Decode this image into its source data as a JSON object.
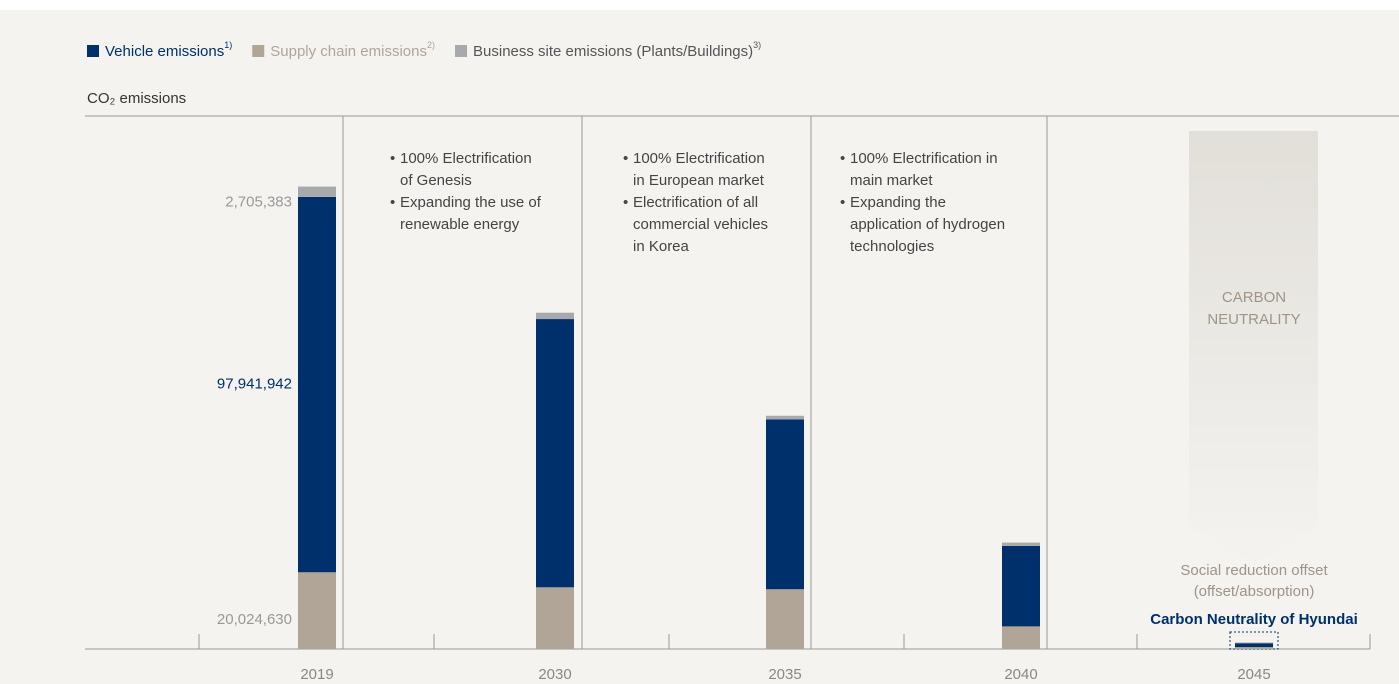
{
  "chart_data": {
    "type": "stacked_bar",
    "ylabel": "CO₂ emissions",
    "categories": [
      "2019",
      "2030",
      "2035",
      "2040",
      "2045"
    ],
    "series": [
      {
        "name": "Supply chain emissions",
        "footnote": "2)",
        "color": "#b0a597",
        "values": [
          20024630,
          16100000,
          15600000,
          5900000,
          500000
        ],
        "value_labels": [
          "20,024,630",
          null,
          null,
          null,
          null
        ]
      },
      {
        "name": "Vehicle emissions",
        "footnote": "1)",
        "color": "#00306b",
        "values": [
          97941942,
          70000000,
          44300000,
          21000000,
          1000000
        ],
        "value_labels": [
          "97,941,942",
          null,
          null,
          null,
          null
        ]
      },
      {
        "name": "Business site emissions (Plants/Buildings)",
        "footnote": "3)",
        "color": "#a8a9ad",
        "values": [
          2705383,
          1660000,
          960000,
          870000,
          200000
        ],
        "value_labels": [
          "2,705,383",
          null,
          null,
          null,
          null
        ]
      }
    ],
    "legend_order": [
      1,
      0,
      2
    ],
    "ylim": [
      0,
      125000000
    ],
    "notes": [
      [
        [
          "100% Electrification",
          "of Genesis"
        ],
        [
          "Expanding the use of",
          "renewable energy"
        ]
      ],
      [
        [
          "100% Electrification",
          "in European market"
        ],
        [
          "Electrification of all",
          "commercial vehicles",
          "in Korea"
        ]
      ],
      [
        [
          "100% Electrification in",
          "main market"
        ],
        [
          "Expanding the",
          "application of hydrogen",
          "technologies"
        ]
      ]
    ],
    "arrow_label": [
      "CARBON",
      "NEUTRALITY"
    ],
    "offset_label": [
      "Social reduction offset",
      "(offset/absorption)"
    ],
    "final_label": "Carbon Neutrality of Hyundai"
  }
}
